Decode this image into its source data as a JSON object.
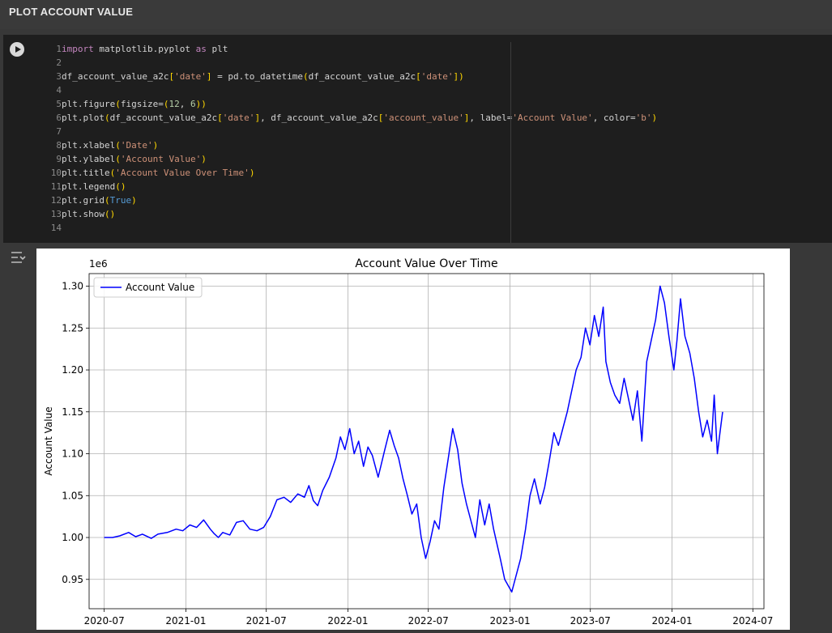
{
  "section": {
    "title": "PLOT ACCOUNT VALUE"
  },
  "code_lines": [
    [
      [
        "kw",
        "import"
      ],
      [
        "t",
        " matplotlib.pyplot "
      ],
      [
        "kw",
        "as"
      ],
      [
        "t",
        " plt"
      ]
    ],
    [],
    [
      [
        "t",
        "df_account_value_a2c"
      ],
      [
        "br",
        "["
      ],
      [
        "str",
        "'date'"
      ],
      [
        "br",
        "]"
      ],
      [
        "t",
        " = pd.to_datetime"
      ],
      [
        "br",
        "("
      ],
      [
        "t",
        "df_account_value_a2c"
      ],
      [
        "br",
        "["
      ],
      [
        "str",
        "'date'"
      ],
      [
        "br",
        "]"
      ],
      [
        "br",
        ")"
      ]
    ],
    [],
    [
      [
        "t",
        "plt.figure"
      ],
      [
        "br",
        "("
      ],
      [
        "t",
        "figsize="
      ],
      [
        "br",
        "("
      ],
      [
        "num",
        "12"
      ],
      [
        "t",
        ", "
      ],
      [
        "num",
        "6"
      ],
      [
        "br",
        ")"
      ],
      [
        "br",
        ")"
      ]
    ],
    [
      [
        "t",
        "plt.plot"
      ],
      [
        "br",
        "("
      ],
      [
        "t",
        "df_account_value_a2c"
      ],
      [
        "br",
        "["
      ],
      [
        "str",
        "'date'"
      ],
      [
        "br",
        "]"
      ],
      [
        "t",
        ", df_account_value_a2c"
      ],
      [
        "br",
        "["
      ],
      [
        "str",
        "'account_value'"
      ],
      [
        "br",
        "]"
      ],
      [
        "t",
        ", label="
      ],
      [
        "str",
        "'Account Value'"
      ],
      [
        "t",
        ", color="
      ],
      [
        "str",
        "'b'"
      ],
      [
        "br",
        ")"
      ]
    ],
    [],
    [
      [
        "t",
        "plt.xlabel"
      ],
      [
        "br",
        "("
      ],
      [
        "str",
        "'Date'"
      ],
      [
        "br",
        ")"
      ]
    ],
    [
      [
        "t",
        "plt.ylabel"
      ],
      [
        "br",
        "("
      ],
      [
        "str",
        "'Account Value'"
      ],
      [
        "br",
        ")"
      ]
    ],
    [
      [
        "t",
        "plt.title"
      ],
      [
        "br",
        "("
      ],
      [
        "str",
        "'Account Value Over Time'"
      ],
      [
        "br",
        ")"
      ]
    ],
    [
      [
        "t",
        "plt.legend"
      ],
      [
        "br",
        "("
      ],
      [
        "br",
        ")"
      ]
    ],
    [
      [
        "t",
        "plt.grid"
      ],
      [
        "br",
        "("
      ],
      [
        "bool",
        "True"
      ],
      [
        "br",
        ")"
      ]
    ],
    [
      [
        "t",
        "plt.show"
      ],
      [
        "br",
        "("
      ],
      [
        "br",
        ")"
      ]
    ],
    []
  ],
  "chart_data": {
    "type": "line",
    "title": "Account Value Over Time",
    "xlabel": "",
    "ylabel": "Account Value",
    "y_offset_label": "1e6",
    "x_ticks": [
      "2020-07",
      "2021-01",
      "2021-07",
      "2022-01",
      "2022-07",
      "2023-01",
      "2023-07",
      "2024-01",
      "2024-07"
    ],
    "y_ticks": [
      "0.95",
      "1.00",
      "1.05",
      "1.10",
      "1.15",
      "1.20",
      "1.25",
      "1.30"
    ],
    "xlim": [
      "2020-05-28",
      "2024-07-26"
    ],
    "ylim": [
      0.915,
      1.315
    ],
    "grid": true,
    "legend": "top-left",
    "series": [
      {
        "name": "Account Value",
        "color": "#0000ff",
        "points": [
          [
            "2020-07-01",
            1.0
          ],
          [
            "2020-07-20",
            1.0
          ],
          [
            "2020-08-05",
            1.002
          ],
          [
            "2020-08-25",
            1.006
          ],
          [
            "2020-09-10",
            1.001
          ],
          [
            "2020-09-25",
            1.004
          ],
          [
            "2020-10-15",
            0.999
          ],
          [
            "2020-10-30",
            1.004
          ],
          [
            "2020-11-20",
            1.006
          ],
          [
            "2020-12-10",
            1.01
          ],
          [
            "2020-12-25",
            1.008
          ],
          [
            "2021-01-10",
            1.015
          ],
          [
            "2021-01-25",
            1.012
          ],
          [
            "2021-02-10",
            1.021
          ],
          [
            "2021-02-25",
            1.01
          ],
          [
            "2021-03-05",
            1.005
          ],
          [
            "2021-03-15",
            1.0
          ],
          [
            "2021-03-25",
            1.006
          ],
          [
            "2021-04-10",
            1.003
          ],
          [
            "2021-04-25",
            1.018
          ],
          [
            "2021-05-10",
            1.02
          ],
          [
            "2021-05-25",
            1.01
          ],
          [
            "2021-06-10",
            1.008
          ],
          [
            "2021-06-25",
            1.012
          ],
          [
            "2021-07-10",
            1.025
          ],
          [
            "2021-07-25",
            1.045
          ],
          [
            "2021-08-10",
            1.048
          ],
          [
            "2021-08-25",
            1.042
          ],
          [
            "2021-09-10",
            1.052
          ],
          [
            "2021-09-25",
            1.048
          ],
          [
            "2021-10-05",
            1.062
          ],
          [
            "2021-10-15",
            1.044
          ],
          [
            "2021-10-25",
            1.038
          ],
          [
            "2021-11-05",
            1.056
          ],
          [
            "2021-11-20",
            1.072
          ],
          [
            "2021-12-05",
            1.095
          ],
          [
            "2021-12-15",
            1.12
          ],
          [
            "2021-12-25",
            1.105
          ],
          [
            "2022-01-05",
            1.13
          ],
          [
            "2022-01-15",
            1.1
          ],
          [
            "2022-01-25",
            1.115
          ],
          [
            "2022-02-05",
            1.085
          ],
          [
            "2022-02-15",
            1.108
          ],
          [
            "2022-02-25",
            1.098
          ],
          [
            "2022-03-10",
            1.072
          ],
          [
            "2022-03-25",
            1.105
          ],
          [
            "2022-04-05",
            1.128
          ],
          [
            "2022-04-15",
            1.11
          ],
          [
            "2022-04-25",
            1.095
          ],
          [
            "2022-05-05",
            1.07
          ],
          [
            "2022-05-15",
            1.05
          ],
          [
            "2022-05-25",
            1.028
          ],
          [
            "2022-06-05",
            1.04
          ],
          [
            "2022-06-15",
            1.0
          ],
          [
            "2022-06-25",
            0.975
          ],
          [
            "2022-07-05",
            0.995
          ],
          [
            "2022-07-15",
            1.02
          ],
          [
            "2022-07-25",
            1.01
          ],
          [
            "2022-08-05",
            1.06
          ],
          [
            "2022-08-15",
            1.095
          ],
          [
            "2022-08-25",
            1.13
          ],
          [
            "2022-09-05",
            1.105
          ],
          [
            "2022-09-15",
            1.065
          ],
          [
            "2022-09-25",
            1.04
          ],
          [
            "2022-10-05",
            1.02
          ],
          [
            "2022-10-15",
            1.0
          ],
          [
            "2022-10-25",
            1.045
          ],
          [
            "2022-11-05",
            1.015
          ],
          [
            "2022-11-15",
            1.04
          ],
          [
            "2022-11-25",
            1.01
          ],
          [
            "2022-12-10",
            0.975
          ],
          [
            "2022-12-20",
            0.95
          ],
          [
            "2023-01-05",
            0.935
          ],
          [
            "2023-01-15",
            0.955
          ],
          [
            "2023-01-25",
            0.975
          ],
          [
            "2023-02-05",
            1.01
          ],
          [
            "2023-02-15",
            1.05
          ],
          [
            "2023-02-25",
            1.07
          ],
          [
            "2023-03-10",
            1.04
          ],
          [
            "2023-03-20",
            1.06
          ],
          [
            "2023-03-30",
            1.09
          ],
          [
            "2023-04-10",
            1.125
          ],
          [
            "2023-04-20",
            1.11
          ],
          [
            "2023-04-30",
            1.13
          ],
          [
            "2023-05-10",
            1.15
          ],
          [
            "2023-05-20",
            1.175
          ],
          [
            "2023-05-30",
            1.2
          ],
          [
            "2023-06-10",
            1.215
          ],
          [
            "2023-06-20",
            1.25
          ],
          [
            "2023-06-30",
            1.23
          ],
          [
            "2023-07-10",
            1.265
          ],
          [
            "2023-07-20",
            1.24
          ],
          [
            "2023-07-30",
            1.275
          ],
          [
            "2023-08-05",
            1.21
          ],
          [
            "2023-08-15",
            1.185
          ],
          [
            "2023-08-25",
            1.17
          ],
          [
            "2023-09-05",
            1.16
          ],
          [
            "2023-09-15",
            1.19
          ],
          [
            "2023-09-25",
            1.165
          ],
          [
            "2023-10-05",
            1.14
          ],
          [
            "2023-10-15",
            1.175
          ],
          [
            "2023-10-25",
            1.115
          ],
          [
            "2023-11-05",
            1.21
          ],
          [
            "2023-11-15",
            1.235
          ],
          [
            "2023-11-25",
            1.26
          ],
          [
            "2023-12-05",
            1.3
          ],
          [
            "2023-12-15",
            1.28
          ],
          [
            "2023-12-25",
            1.24
          ],
          [
            "2024-01-05",
            1.2
          ],
          [
            "2024-01-12",
            1.235
          ],
          [
            "2024-01-20",
            1.285
          ],
          [
            "2024-01-30",
            1.24
          ],
          [
            "2024-02-10",
            1.22
          ],
          [
            "2024-02-20",
            1.19
          ],
          [
            "2024-03-01",
            1.15
          ],
          [
            "2024-03-10",
            1.12
          ],
          [
            "2024-03-20",
            1.14
          ],
          [
            "2024-03-30",
            1.115
          ],
          [
            "2024-04-05",
            1.17
          ],
          [
            "2024-04-12",
            1.1
          ],
          [
            "2024-04-18",
            1.125
          ],
          [
            "2024-04-24",
            1.15
          ]
        ]
      }
    ]
  }
}
